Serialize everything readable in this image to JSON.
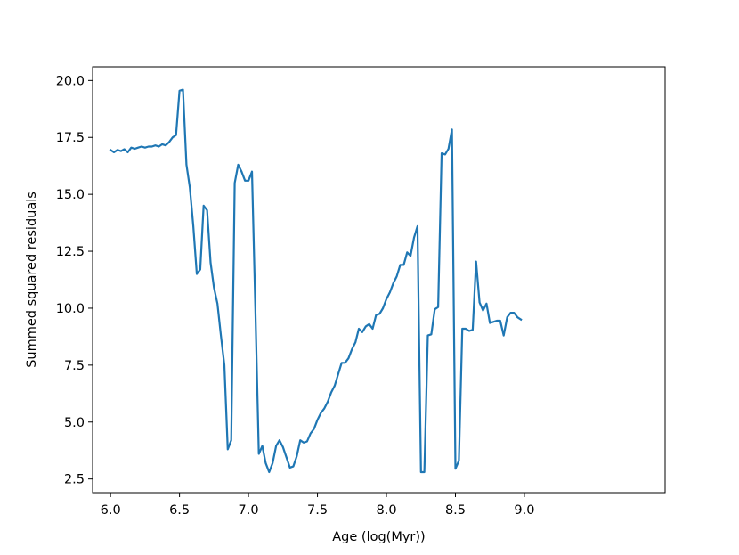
{
  "chart_data": {
    "type": "line",
    "title": "",
    "xlabel": "Age (log(Myr))",
    "ylabel": "Summed squared residuals",
    "xlim": [
      5.87,
      10.02
    ],
    "ylim": [
      1.9,
      20.6
    ],
    "xticks": [
      6.0,
      6.5,
      7.0,
      7.5,
      8.0,
      8.5,
      9.0
    ],
    "xtick_labels": [
      "6.0",
      "6.5",
      "7.0",
      "7.5",
      "8.0",
      "8.5",
      "9.0"
    ],
    "yticks": [
      2.5,
      5.0,
      7.5,
      10.0,
      12.5,
      15.0,
      17.5,
      20.0
    ],
    "ytick_labels": [
      "2.5",
      "5.0",
      "7.5",
      "10.0",
      "12.5",
      "15.0",
      "17.5",
      "20.0"
    ],
    "grid": false,
    "line_color": "#1f77b4",
    "series": [
      {
        "x": [
          6.0,
          6.025,
          6.05,
          6.075,
          6.1,
          6.125,
          6.15,
          6.175,
          6.2,
          6.225,
          6.25,
          6.275,
          6.3,
          6.325,
          6.35,
          6.375,
          6.4,
          6.425,
          6.45,
          6.475,
          6.5,
          6.525,
          6.55,
          6.575,
          6.6,
          6.625,
          6.65,
          6.675,
          6.7,
          6.725,
          6.75,
          6.775,
          6.8,
          6.825,
          6.85,
          6.875,
          6.9,
          6.925,
          6.95,
          6.975,
          7.0,
          7.025,
          7.05,
          7.075,
          7.1,
          7.125,
          7.15,
          7.175,
          7.2,
          7.225,
          7.25,
          7.275,
          7.3,
          7.325,
          7.35,
          7.375,
          7.4,
          7.425,
          7.45,
          7.475,
          7.5,
          7.525,
          7.55,
          7.575,
          7.6,
          7.625,
          7.65,
          7.675,
          7.7,
          7.725,
          7.75,
          7.775,
          7.8,
          7.825,
          7.85,
          7.875,
          7.9,
          7.925,
          7.95,
          7.975,
          8.0,
          8.025,
          8.05,
          8.075,
          8.1,
          8.125,
          8.15,
          8.175,
          8.2,
          8.225,
          8.25,
          8.275,
          8.3,
          8.325,
          8.35,
          8.375,
          8.4,
          8.425,
          8.45,
          8.475,
          8.5,
          8.525,
          8.55,
          8.575,
          8.6,
          8.625,
          8.65,
          8.675,
          8.7,
          8.725,
          8.75,
          8.775,
          8.8,
          8.825,
          8.85,
          8.875,
          8.9,
          8.925,
          8.95,
          8.975
        ],
        "y": [
          16.95,
          16.85,
          16.95,
          16.9,
          16.98,
          16.85,
          17.05,
          17.0,
          17.05,
          17.1,
          17.05,
          17.1,
          17.1,
          17.15,
          17.1,
          17.2,
          17.15,
          17.3,
          17.5,
          17.6,
          19.55,
          19.6,
          16.3,
          15.3,
          13.6,
          11.5,
          11.7,
          14.5,
          14.3,
          12.0,
          10.9,
          10.2,
          8.8,
          7.5,
          3.8,
          4.2,
          15.5,
          16.3,
          16.0,
          15.6,
          15.6,
          16.0,
          10.0,
          3.6,
          3.95,
          3.2,
          2.8,
          3.2,
          3.95,
          4.2,
          3.9,
          3.45,
          3.0,
          3.05,
          3.5,
          4.2,
          4.1,
          4.15,
          4.5,
          4.7,
          5.1,
          5.4,
          5.6,
          5.9,
          6.3,
          6.6,
          7.1,
          7.6,
          7.6,
          7.8,
          8.2,
          8.5,
          9.1,
          8.95,
          9.2,
          9.3,
          9.1,
          9.7,
          9.75,
          10.0,
          10.4,
          10.7,
          11.1,
          11.4,
          11.9,
          11.9,
          12.45,
          12.3,
          13.1,
          13.6,
          2.8,
          2.8,
          8.8,
          8.85,
          9.95,
          10.05,
          16.8,
          16.75,
          17.0,
          17.85,
          2.95,
          3.3,
          9.1,
          9.1,
          9.0,
          9.05,
          12.05,
          10.25,
          9.9,
          10.2,
          9.35,
          9.4,
          9.45,
          9.45,
          8.8,
          9.6,
          9.8,
          9.8,
          9.6,
          9.5
        ]
      }
    ]
  }
}
